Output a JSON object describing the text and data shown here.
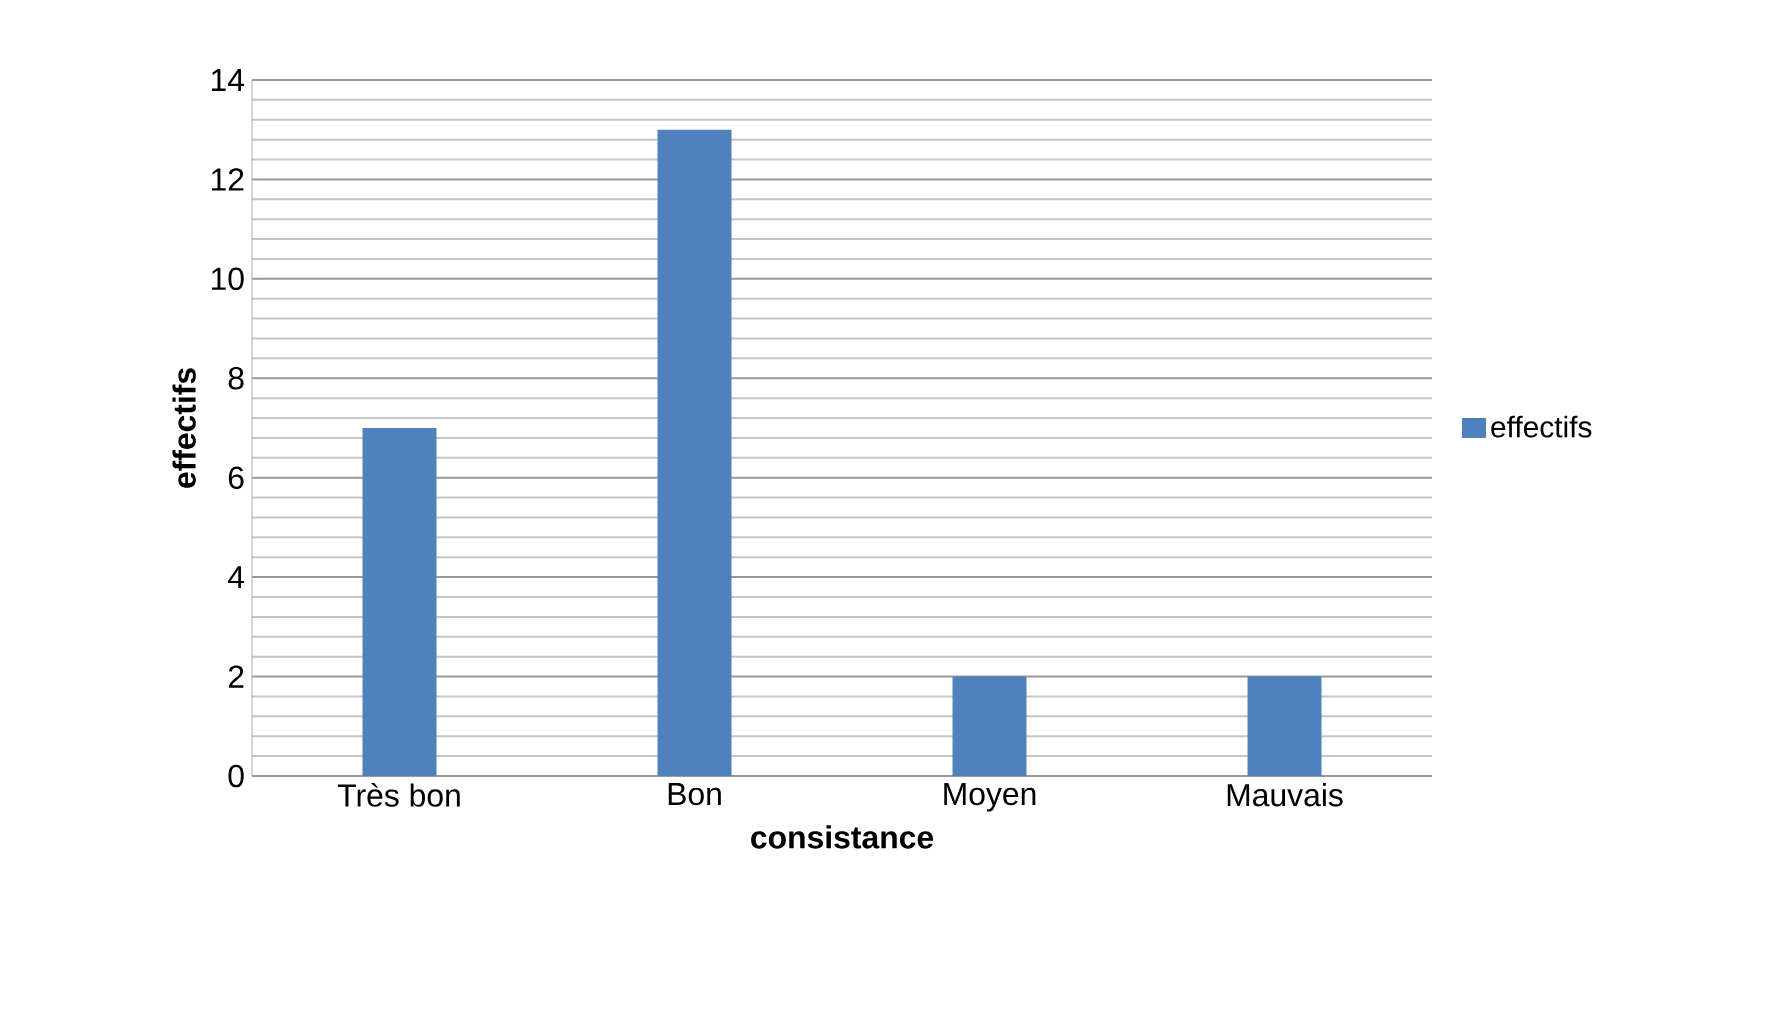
{
  "chart_data": {
    "type": "bar",
    "xlabel": "consistance",
    "ylabel": "effectifs",
    "categories": [
      "Très bon",
      "Bon",
      "Moyen",
      "Mauvais"
    ],
    "series": [
      {
        "name": "effectifs",
        "color": "#4f81bd",
        "values": [
          7,
          13,
          2,
          2
        ]
      }
    ],
    "ylim": [
      0,
      14
    ],
    "yticks": [
      0,
      2,
      4,
      6,
      8,
      10,
      12,
      14
    ],
    "grid": "y",
    "legend": "right"
  }
}
